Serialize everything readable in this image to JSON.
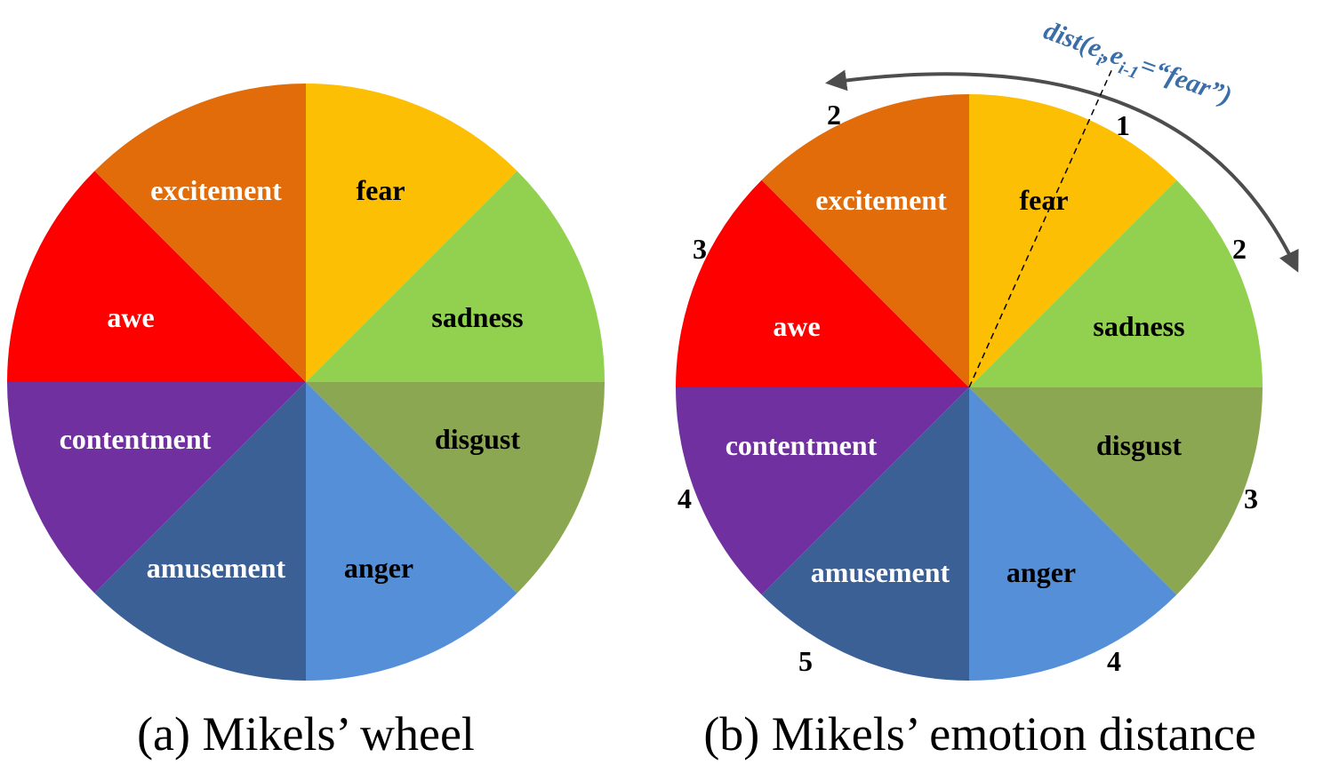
{
  "segments": [
    {
      "key": "fear",
      "label": "fear",
      "color": "#fcbf04",
      "text_color": "#000000"
    },
    {
      "key": "sadness",
      "label": "sadness",
      "color": "#92d050",
      "text_color": "#000000"
    },
    {
      "key": "disgust",
      "label": "disgust",
      "color": "#8ba751",
      "text_color": "#000000"
    },
    {
      "key": "anger",
      "label": "anger",
      "color": "#558fd8",
      "text_color": "#000000"
    },
    {
      "key": "amusement",
      "label": "amusement",
      "color": "#3a6096",
      "text_color": "#ffffff"
    },
    {
      "key": "contentment",
      "label": "contentment",
      "color": "#7030a0",
      "text_color": "#ffffff"
    },
    {
      "key": "awe",
      "label": "awe",
      "color": "#fe0000",
      "text_color": "#ffffff"
    },
    {
      "key": "excitement",
      "label": "excitement",
      "color": "#e36c0a",
      "text_color": "#ffffff"
    }
  ],
  "wheel_a": {
    "caption": "(a) Mikels’ wheel"
  },
  "wheel_b": {
    "caption": "(b) Mikels’ emotion distance",
    "formula": {
      "pre": "dist(e",
      "sub1": "i",
      "mid": ",e",
      "sub2": "i-1",
      "post": "=“fear”)"
    },
    "distances": [
      {
        "segment": "fear",
        "value": "1"
      },
      {
        "segment": "sadness",
        "value": "2"
      },
      {
        "segment": "disgust",
        "value": "3"
      },
      {
        "segment": "anger",
        "value": "4"
      },
      {
        "segment": "amusement",
        "value": "5"
      },
      {
        "segment": "contentment",
        "value": "4"
      },
      {
        "segment": "awe",
        "value": "3"
      },
      {
        "segment": "excitement",
        "value": "2"
      }
    ],
    "arrow_color": "#4d4d4d"
  }
}
